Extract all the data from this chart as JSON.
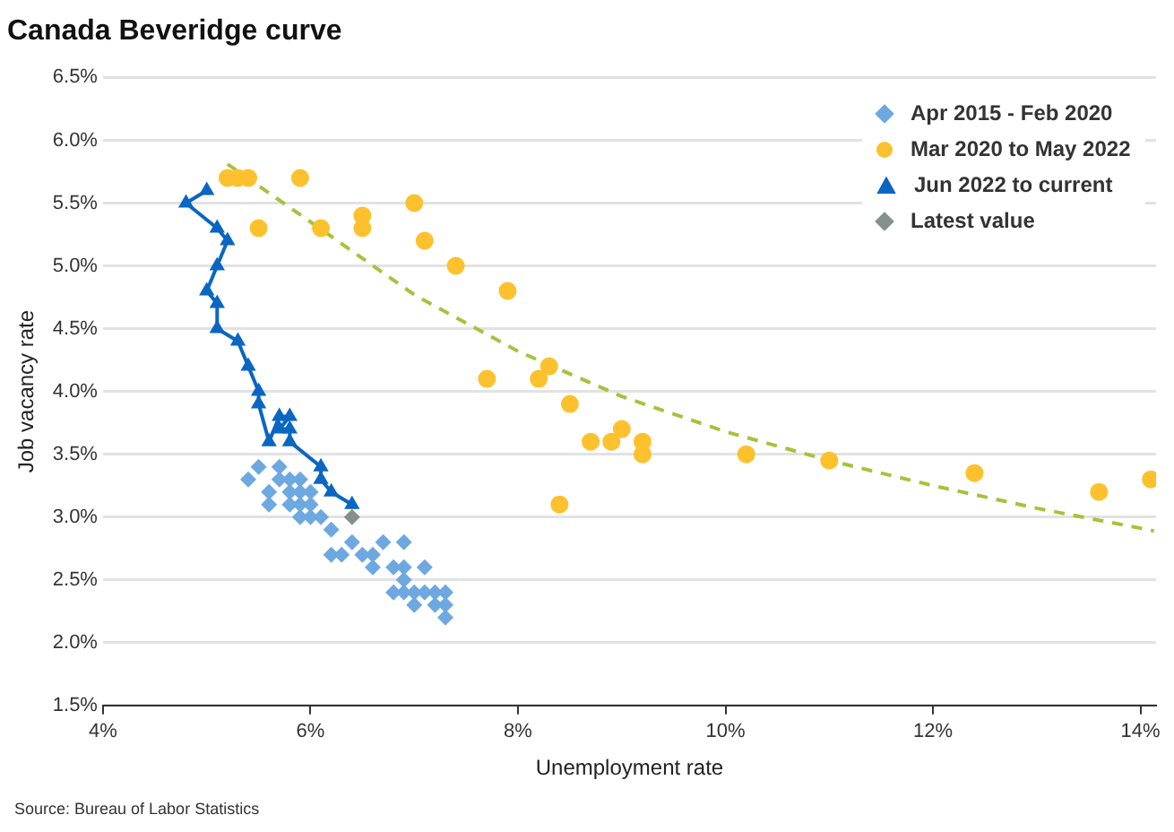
{
  "chart_data": {
    "type": "scatter",
    "title": "Canada Beveridge curve",
    "xlabel": "Unemployment rate",
    "ylabel": "Job vacancy rate",
    "xlim": [
      4,
      14.15
    ],
    "xticks": [
      {
        "value": 4,
        "label": "4%"
      },
      {
        "value": 6,
        "label": "6%"
      },
      {
        "value": 8,
        "label": "8%"
      },
      {
        "value": 10,
        "label": "10%"
      },
      {
        "value": 12,
        "label": "12%"
      },
      {
        "value": 14,
        "label": "14%"
      }
    ],
    "ylim": [
      1.5,
      6.5
    ],
    "yticks": [
      {
        "value": 1.5,
        "label": "1.5%"
      },
      {
        "value": 2,
        "label": "2.0%"
      },
      {
        "value": 2.5,
        "label": "2.5%"
      },
      {
        "value": 3,
        "label": "3.0%"
      },
      {
        "value": 3.5,
        "label": "3.5%"
      },
      {
        "value": 4,
        "label": "4.0%"
      },
      {
        "value": 4.5,
        "label": "4.5%"
      },
      {
        "value": 5,
        "label": "5.0%"
      },
      {
        "value": 5.5,
        "label": "5.5%"
      },
      {
        "value": 6,
        "label": "6.0%"
      },
      {
        "value": 6.5,
        "label": "6.5%"
      }
    ],
    "grid": "y",
    "legend": "top right",
    "annotations": [
      "Source: Bureau of Labor Statistics"
    ],
    "series": [
      {
        "name": "Apr 2015 - Feb 2020",
        "type": "scatter",
        "marker": "diamond",
        "color": "#6ea8e0",
        "x": [
          5.4,
          5.5,
          5.6,
          5.6,
          5.7,
          5.7,
          5.8,
          5.9,
          5.8,
          5.9,
          6.0,
          5.8,
          5.9,
          6.0,
          5.9,
          6.0,
          6.1,
          6.2,
          6.4,
          6.2,
          6.3,
          6.5,
          6.6,
          6.6,
          6.7,
          6.9,
          6.8,
          6.9,
          7.1,
          6.9,
          6.8,
          6.9,
          7.0,
          7.1,
          7.2,
          7.3,
          7.0,
          7.2,
          7.3,
          7.3
        ],
        "values": [
          3.3,
          3.4,
          3.2,
          3.1,
          3.4,
          3.3,
          3.3,
          3.3,
          3.2,
          3.2,
          3.2,
          3.1,
          3.1,
          3.1,
          3.0,
          3.0,
          3.0,
          2.9,
          2.8,
          2.7,
          2.7,
          2.7,
          2.7,
          2.6,
          2.8,
          2.8,
          2.6,
          2.6,
          2.6,
          2.5,
          2.4,
          2.4,
          2.4,
          2.4,
          2.4,
          2.4,
          2.3,
          2.3,
          2.3,
          2.2
        ]
      },
      {
        "name": "Mar 2020 to May 2022",
        "type": "scatter",
        "marker": "circle",
        "color": "#fcc12d",
        "x": [
          5.2,
          5.3,
          5.4,
          5.9,
          5.5,
          6.1,
          6.5,
          6.5,
          7.0,
          7.1,
          7.4,
          7.9,
          7.7,
          8.2,
          8.3,
          8.5,
          8.7,
          8.9,
          9.0,
          9.2,
          9.2,
          8.4,
          10.2,
          11.0,
          12.4,
          13.6,
          14.1
        ],
        "values": [
          5.7,
          5.7,
          5.7,
          5.7,
          5.3,
          5.3,
          5.4,
          5.3,
          5.5,
          5.2,
          5.0,
          4.8,
          4.1,
          4.1,
          4.2,
          3.9,
          3.6,
          3.6,
          3.7,
          3.6,
          3.5,
          3.1,
          3.5,
          3.45,
          3.35,
          3.2,
          3.3
        ]
      },
      {
        "name": "Jun 2022 to current",
        "type": "line",
        "marker": "triangle",
        "color": "#0a66c2",
        "x": [
          5.0,
          4.8,
          5.1,
          5.2,
          5.1,
          5.0,
          5.1,
          5.1,
          5.3,
          5.4,
          5.5,
          5.5,
          5.6,
          5.7,
          5.8,
          5.7,
          5.8,
          5.8,
          6.1,
          6.1,
          6.2,
          6.4
        ],
        "values": [
          5.6,
          5.5,
          5.3,
          5.2,
          5.0,
          4.8,
          4.7,
          4.5,
          4.4,
          4.2,
          4.0,
          3.9,
          3.6,
          3.8,
          3.8,
          3.7,
          3.7,
          3.6,
          3.4,
          3.3,
          3.2,
          3.1
        ]
      },
      {
        "name": "Latest value",
        "type": "scatter",
        "marker": "diamond",
        "color": "#86908a",
        "x": [
          6.4
        ],
        "values": [
          3.0
        ]
      },
      {
        "type": "line",
        "marker": "none",
        "line_style": "dashed",
        "color": "#a6c23c",
        "x": [
          5.2,
          6.0,
          7.0,
          8.0,
          9.0,
          10.0,
          11.0,
          12.0,
          13.0,
          14.13
        ],
        "values": [
          5.81,
          5.35,
          4.77,
          4.32,
          3.96,
          3.68,
          3.45,
          3.25,
          3.07,
          2.89
        ]
      }
    ]
  }
}
